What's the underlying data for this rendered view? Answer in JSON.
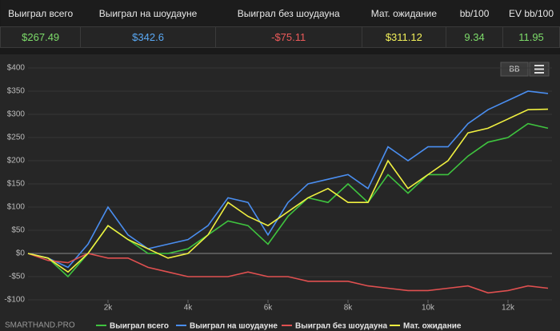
{
  "stats": {
    "headers": [
      "Выиграл всего",
      "Выиграл на шоудауне",
      "Выиграл без шоудауна",
      "Мат. ожидание",
      "bb/100",
      "EV bb/100"
    ],
    "values": [
      "$267.49",
      "$342.6",
      "-$75.11",
      "$311.12",
      "9.34",
      "11.95"
    ],
    "colors": [
      "#7ddc6a",
      "#5aa9f5",
      "#ec5a5a",
      "#f2f05a",
      "#7ddc6a",
      "#7ddc6a"
    ]
  },
  "toolbar": {
    "button": "BB"
  },
  "logo": "SMARTHAND.PRO",
  "chart_data": {
    "type": "line",
    "x": [
      0,
      500,
      1000,
      1500,
      2000,
      2500,
      3000,
      3500,
      4000,
      4500,
      5000,
      5500,
      6000,
      6500,
      7000,
      7500,
      8000,
      8500,
      9000,
      9500,
      10000,
      10500,
      11000,
      11500,
      12000,
      12500,
      13000
    ],
    "series": [
      {
        "name": "Выиграл всего",
        "color": "#3fc43f",
        "values": [
          0,
          -10,
          -50,
          0,
          60,
          30,
          0,
          0,
          10,
          40,
          70,
          60,
          20,
          80,
          120,
          110,
          150,
          110,
          170,
          130,
          170,
          170,
          210,
          240,
          250,
          280,
          270
        ]
      },
      {
        "name": "Выиграл на шоудауне",
        "color": "#4a8ef0",
        "values": [
          0,
          -10,
          -30,
          20,
          100,
          40,
          10,
          20,
          30,
          60,
          120,
          110,
          40,
          110,
          150,
          160,
          170,
          140,
          230,
          200,
          230,
          230,
          280,
          310,
          330,
          350,
          345
        ]
      },
      {
        "name": "Выиграл без шоудауна",
        "color": "#e05050",
        "values": [
          0,
          -15,
          -20,
          0,
          -10,
          -10,
          -30,
          -40,
          -50,
          -50,
          -50,
          -40,
          -50,
          -50,
          -60,
          -60,
          -60,
          -70,
          -75,
          -80,
          -80,
          -75,
          -70,
          -85,
          -80,
          -70,
          -75
        ]
      },
      {
        "name": "Мат. ожидание",
        "color": "#f0f040",
        "values": [
          0,
          -10,
          -40,
          0,
          60,
          30,
          10,
          -10,
          0,
          40,
          110,
          80,
          60,
          90,
          120,
          140,
          110,
          110,
          200,
          140,
          170,
          200,
          260,
          270,
          290,
          310,
          311
        ]
      }
    ],
    "xlim": [
      0,
      13100
    ],
    "xticks": [
      {
        "value": 2000,
        "label": "2k"
      },
      {
        "value": 4000,
        "label": "4k"
      },
      {
        "value": 6000,
        "label": "6k"
      },
      {
        "value": 8000,
        "label": "8k"
      },
      {
        "value": 10000,
        "label": "10k"
      },
      {
        "value": 12000,
        "label": "12k"
      }
    ],
    "ylim": [
      -100,
      400
    ],
    "yticks": [
      {
        "value": -100,
        "label": "-$100"
      },
      {
        "value": -50,
        "label": "-$50"
      },
      {
        "value": 0,
        "label": "$0"
      },
      {
        "value": 50,
        "label": "$50"
      },
      {
        "value": 100,
        "label": "$100"
      },
      {
        "value": 150,
        "label": "$150"
      },
      {
        "value": 200,
        "label": "$200"
      },
      {
        "value": 250,
        "label": "$250"
      },
      {
        "value": 300,
        "label": "$300"
      },
      {
        "value": 350,
        "label": "$350"
      },
      {
        "value": 400,
        "label": "$400"
      }
    ],
    "grid": true
  }
}
